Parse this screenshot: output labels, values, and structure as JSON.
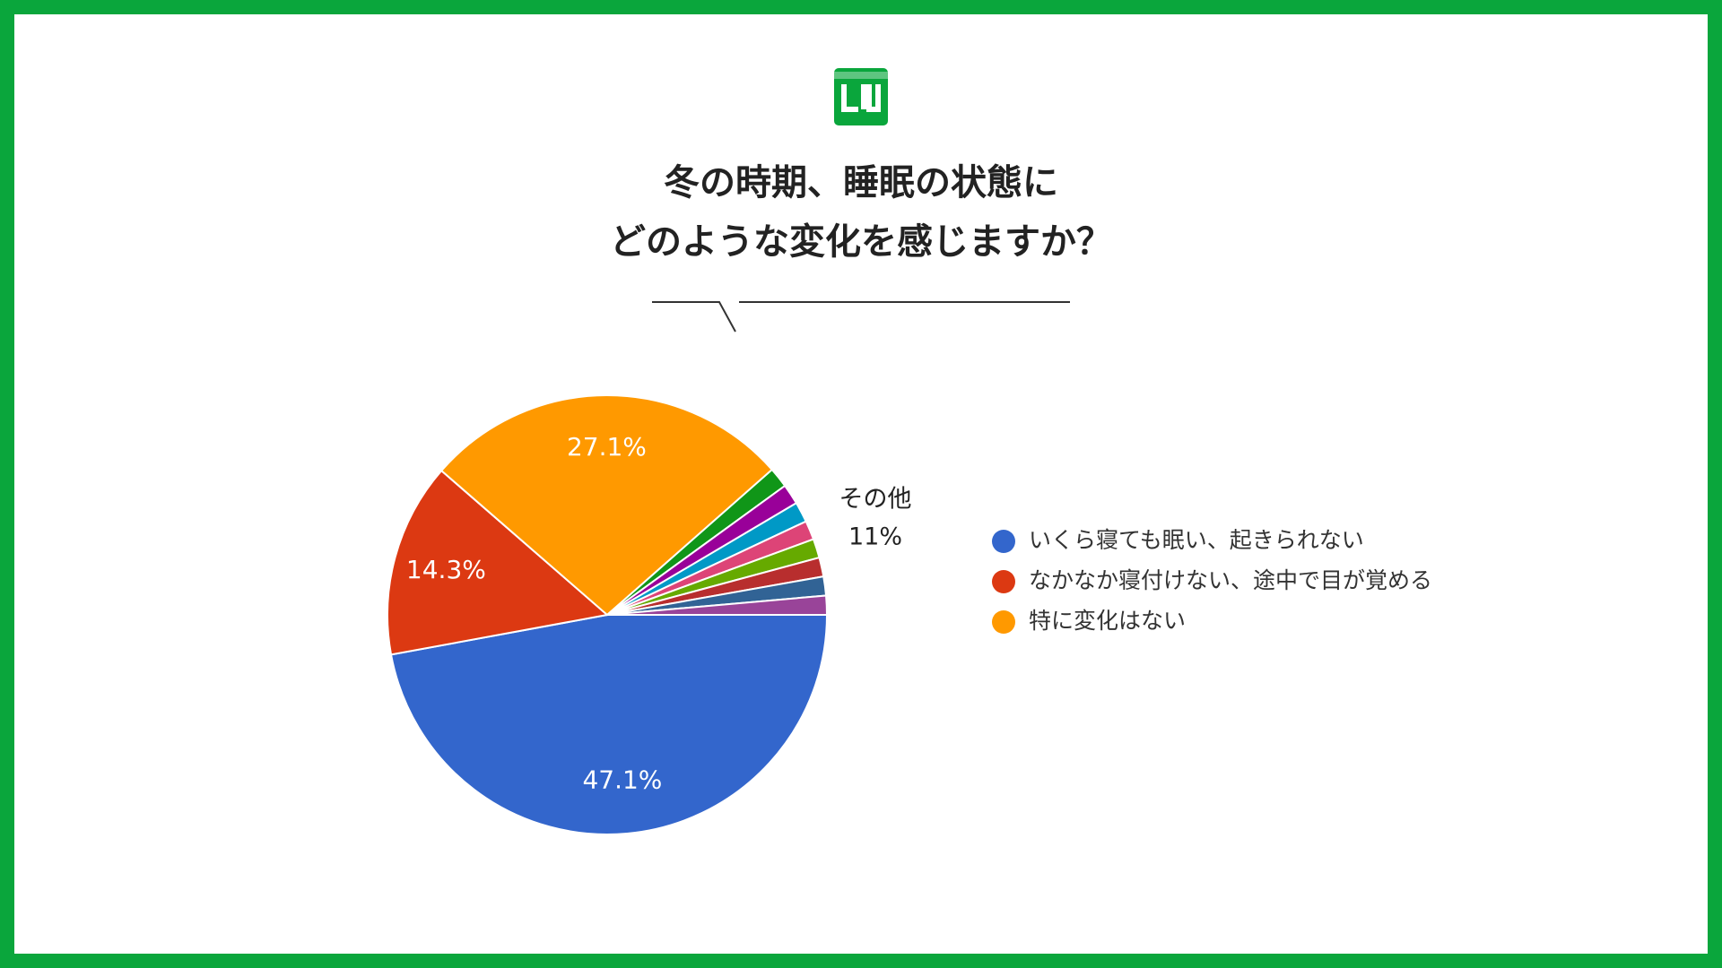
{
  "chart_data": {
    "type": "pie",
    "title": [
      "冬の時期、睡眠の状態に",
      "どのような変化を感じますか？"
    ],
    "categories": [
      "いくら寝ても眠い、起きられない",
      "なかなか寝付けない、途中で目が覚める",
      "特に変化はない",
      null,
      null,
      null,
      null,
      null,
      null,
      null,
      null
    ],
    "values": [
      47.1,
      14.3,
      27.1,
      1.5,
      1.5,
      1.5,
      1.4,
      1.4,
      1.4,
      1.4,
      1.4
    ],
    "value_labels": [
      "47.1%",
      "14.3%",
      "27.1%",
      null,
      null,
      null,
      null,
      null,
      null,
      null,
      null
    ],
    "colors": [
      "#3366cc",
      "#dc3912",
      "#ff9900",
      "#109618",
      "#990099",
      "#0099c6",
      "#dd4477",
      "#66aa00",
      "#b82e2e",
      "#316395",
      "#994499"
    ],
    "annotation": [
      "その他",
      "11%"
    ],
    "legend": "right"
  }
}
